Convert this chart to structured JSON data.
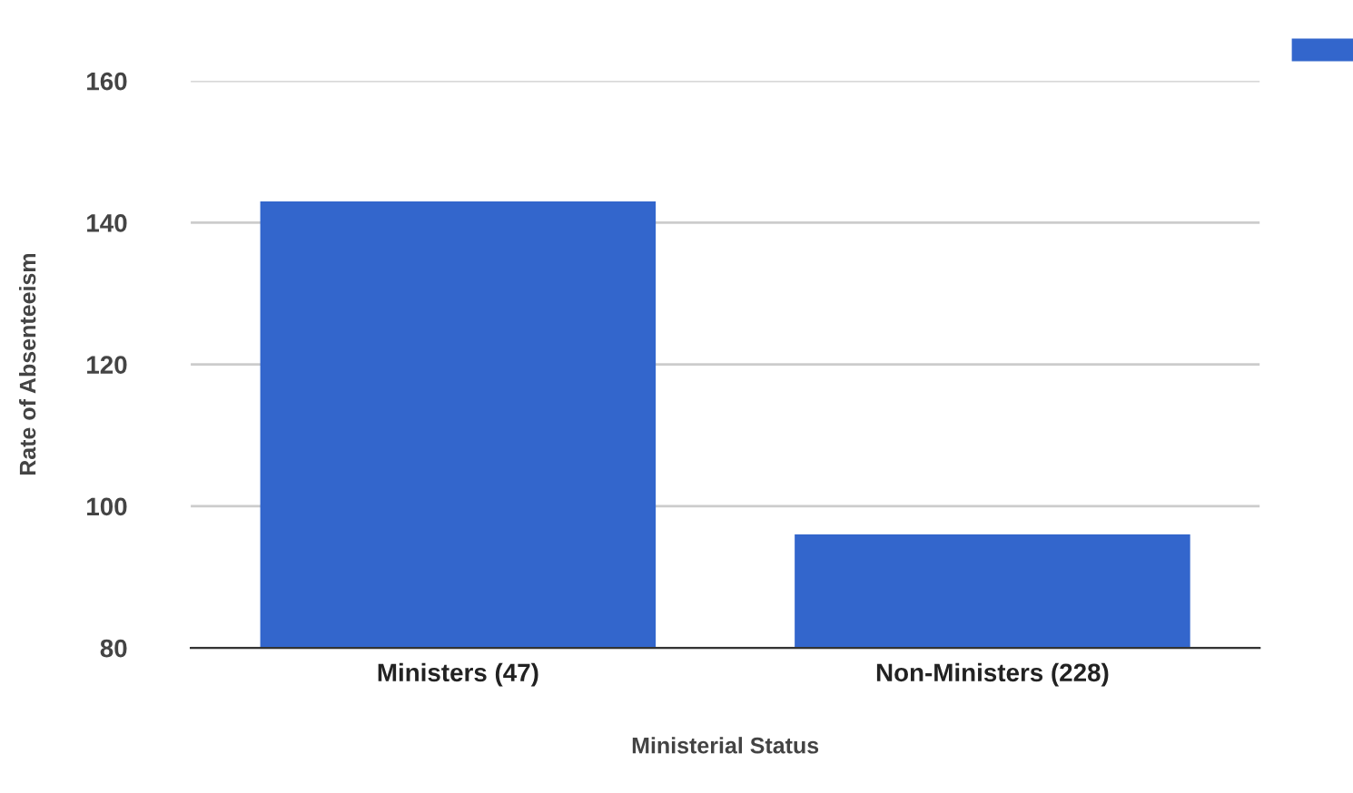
{
  "chart_data": {
    "type": "bar",
    "xlabel": "Ministerial Status",
    "ylabel": "Rate of Absenteeism",
    "categories": [
      "Ministers (47)",
      "Non-Ministers (228)"
    ],
    "series": [
      {
        "color": "#3366cc",
        "values": [
          143,
          96
        ]
      }
    ],
    "ylim": [
      80,
      160
    ],
    "yticks": [
      80,
      100,
      120,
      140,
      160
    ],
    "grid": "y"
  }
}
